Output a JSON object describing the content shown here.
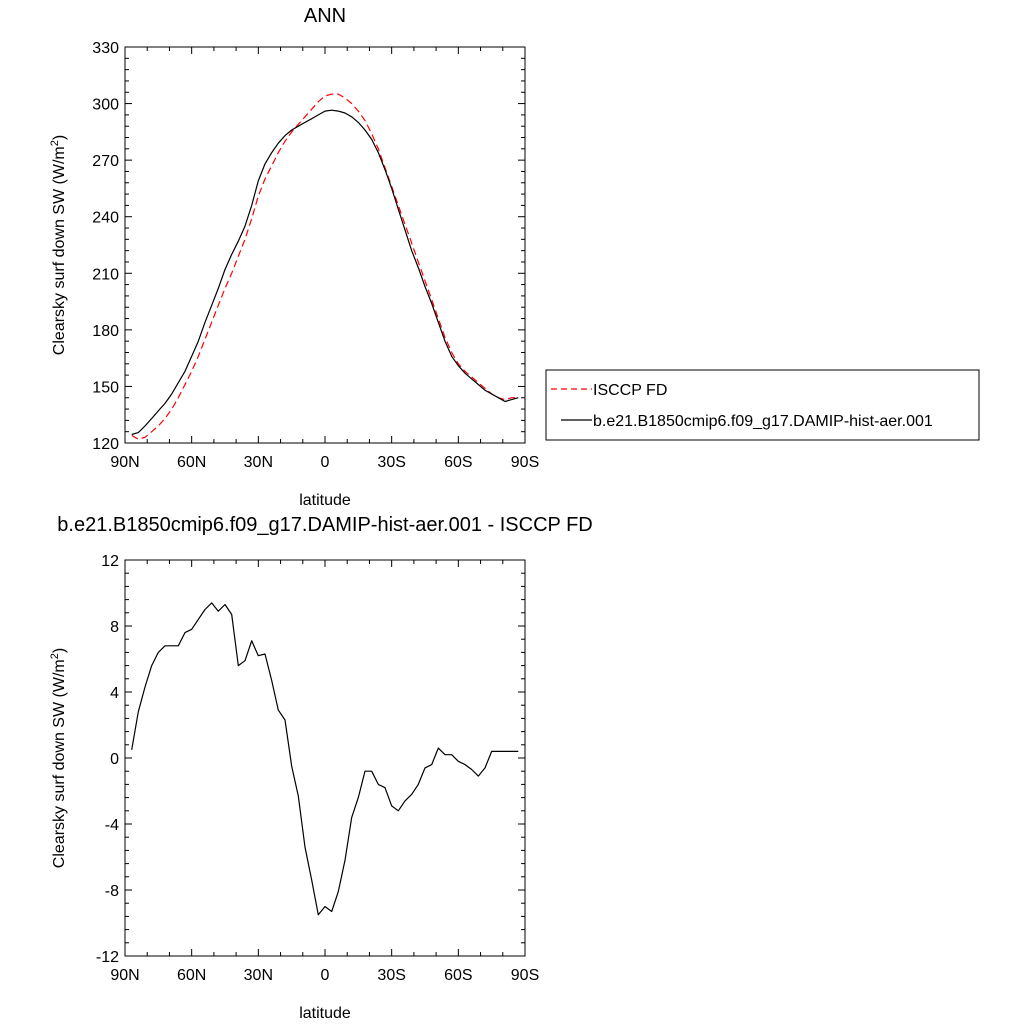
{
  "chart_data": [
    {
      "type": "line",
      "title": "ANN",
      "xlabel": "latitude",
      "ylabel": "Clearsky surf down SW (W/m",
      "ylabel_sup": "2",
      "ylabel_close": ")",
      "xlim": [
        -90,
        90
      ],
      "ylim": [
        120,
        330
      ],
      "x_ticks": [
        {
          "value": -90,
          "label": "90N"
        },
        {
          "value": -60,
          "label": "60N"
        },
        {
          "value": -30,
          "label": "30N"
        },
        {
          "value": 0,
          "label": "0"
        },
        {
          "value": 30,
          "label": "30S"
        },
        {
          "value": 60,
          "label": "60S"
        },
        {
          "value": 90,
          "label": "90S"
        }
      ],
      "y_ticks": [
        120,
        150,
        180,
        210,
        240,
        270,
        300,
        330
      ],
      "legend_position": "right",
      "series": [
        {
          "name": "ISCCP FD",
          "color": "#ff0000",
          "dash": true,
          "x": [
            -87,
            -84,
            -81,
            -78,
            -75,
            -72,
            -69,
            -66,
            -63,
            -60,
            -57,
            -54,
            -51,
            -48,
            -45,
            -42,
            -39,
            -36,
            -33,
            -30,
            -27,
            -24,
            -21,
            -18,
            -15,
            -12,
            -9,
            -6,
            -3,
            0,
            3,
            6,
            9,
            12,
            15,
            18,
            21,
            24,
            27,
            30,
            33,
            36,
            39,
            42,
            45,
            48,
            51,
            54,
            57,
            60,
            63,
            66,
            69,
            72,
            75,
            78,
            81,
            84,
            87
          ],
          "y": [
            124,
            122,
            123,
            126,
            129,
            133,
            138,
            144,
            151,
            158,
            166,
            175,
            184,
            193,
            202,
            210,
            219,
            228,
            239,
            251,
            260,
            267,
            274,
            280,
            285,
            289,
            293,
            297,
            301,
            304,
            305,
            305,
            303,
            300,
            296,
            291,
            284,
            276,
            266,
            256,
            246,
            236,
            226,
            216,
            206,
            196,
            186,
            176,
            168,
            162,
            158,
            155,
            152,
            149,
            146,
            144,
            143,
            144,
            144
          ]
        },
        {
          "name": "b.e21.B1850cmip6.f09_g17.DAMIP-hist-aer.001",
          "color": "#000000",
          "dash": false,
          "x": [
            -87,
            -84,
            -81,
            -78,
            -75,
            -72,
            -69,
            -66,
            -63,
            -60,
            -57,
            -54,
            -51,
            -48,
            -45,
            -42,
            -39,
            -36,
            -33,
            -30,
            -27,
            -24,
            -21,
            -18,
            -15,
            -12,
            -9,
            -6,
            -3,
            0,
            3,
            6,
            9,
            12,
            15,
            18,
            21,
            24,
            27,
            30,
            33,
            36,
            39,
            42,
            45,
            48,
            51,
            54,
            57,
            60,
            63,
            66,
            69,
            72,
            75,
            78,
            81,
            84,
            87
          ],
          "y": [
            124.5,
            125.5,
            129,
            133,
            137,
            141,
            146,
            152,
            158,
            166,
            174,
            184,
            193,
            202,
            212,
            220,
            227,
            235,
            246,
            259,
            268,
            274,
            279,
            283,
            286,
            288,
            290,
            292,
            294,
            296,
            296.5,
            296,
            295,
            293,
            290,
            286,
            281,
            274,
            265,
            255,
            244,
            233,
            222,
            213,
            203,
            194,
            184,
            174,
            166,
            161,
            157,
            154,
            151,
            148,
            146,
            144,
            142,
            143,
            144
          ]
        }
      ]
    },
    {
      "type": "line",
      "title": "b.e21.B1850cmip6.f09_g17.DAMIP-hist-aer.001 - ISCCP FD",
      "xlabel": "latitude",
      "ylabel": "Clearsky surf down SW (W/m",
      "ylabel_sup": "2",
      "ylabel_close": ")",
      "xlim": [
        -90,
        90
      ],
      "ylim": [
        -12,
        12
      ],
      "x_ticks": [
        {
          "value": -90,
          "label": "90N"
        },
        {
          "value": -60,
          "label": "60N"
        },
        {
          "value": -30,
          "label": "30N"
        },
        {
          "value": 0,
          "label": "0"
        },
        {
          "value": 30,
          "label": "30S"
        },
        {
          "value": 60,
          "label": "60S"
        },
        {
          "value": 90,
          "label": "90S"
        }
      ],
      "y_ticks": [
        -12,
        -8,
        -4,
        0,
        4,
        8,
        12
      ],
      "series": [
        {
          "color": "#000000",
          "dash": false,
          "x": [
            -87,
            -84,
            -81,
            -78,
            -75,
            -72,
            -69,
            -66,
            -63,
            -60,
            -57,
            -54,
            -51,
            -48,
            -45,
            -42,
            -39,
            -36,
            -33,
            -30,
            -27,
            -24,
            -21,
            -18,
            -15,
            -12,
            -9,
            -6,
            -3,
            0,
            3,
            6,
            9,
            12,
            15,
            18,
            21,
            24,
            27,
            30,
            33,
            36,
            39,
            42,
            45,
            48,
            51,
            54,
            57,
            60,
            63,
            66,
            69,
            72,
            75,
            78,
            81,
            84,
            87
          ],
          "y": [
            0.5,
            2.8,
            4.3,
            5.6,
            6.4,
            6.8,
            6.8,
            6.8,
            7.6,
            7.8,
            8.4,
            9.0,
            9.4,
            8.9,
            9.3,
            8.7,
            5.6,
            5.9,
            7.1,
            6.2,
            6.3,
            4.7,
            2.9,
            2.3,
            -0.5,
            -2.3,
            -5.4,
            -7.4,
            -9.5,
            -9.0,
            -9.3,
            -8.1,
            -6.2,
            -3.6,
            -2.4,
            -0.8,
            -0.8,
            -1.6,
            -1.8,
            -2.9,
            -3.2,
            -2.6,
            -2.2,
            -1.6,
            -0.6,
            -0.4,
            0.6,
            0.2,
            0.2,
            -0.2,
            -0.4,
            -0.7,
            -1.1,
            -0.6,
            0.4,
            0.4,
            0.4,
            0.4,
            0.4
          ]
        }
      ]
    }
  ]
}
